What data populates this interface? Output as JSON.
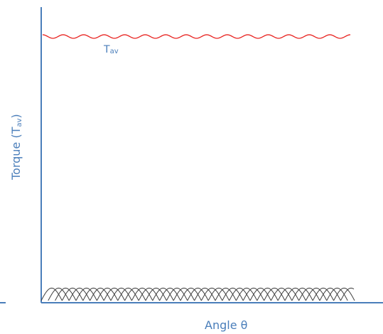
{
  "chart_data": {
    "type": "line",
    "xlabel_main": "Angle ",
    "xlabel_symbol": "θ",
    "ylabel_main": "Torque (T",
    "ylabel_sub": "av",
    "ylabel_end": ")",
    "curve_label_main": "T",
    "curve_label_sub": "av",
    "grid": false,
    "legend": "none",
    "colors": {
      "axis": "#4a7eba",
      "average_torque": "#e8221f",
      "cylinder_torque": "#404040"
    },
    "average_torque_wave": {
      "level": 0.9,
      "cycles": 15,
      "ripple": 0.012
    },
    "cylinder_torque_arches": {
      "level": 0.0,
      "peak": 0.045,
      "count": 44
    }
  }
}
